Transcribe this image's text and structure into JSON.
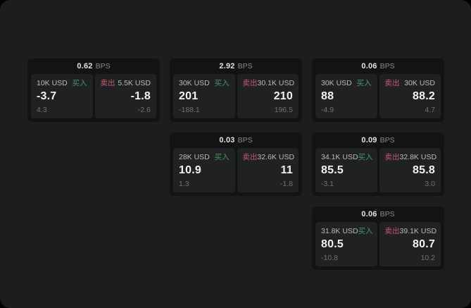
{
  "theme": {
    "page-bg": "#1d1d1e",
    "card-bg": "#121314",
    "panel-bg": "#202122",
    "buy-color": "#43996a",
    "sell-color": "#c75a6e",
    "value-color": "#f2f3f3",
    "muted-color": "#6f7273",
    "label-color": "#b9bcbd",
    "header-value-color": "#e3e3e3",
    "header-unit-color": "#8a8a8a"
  },
  "labels": {
    "bps_unit": "BPS",
    "buy": "买入",
    "sell": "卖出"
  },
  "cards": [
    {
      "bps": "0.62",
      "buy": {
        "amount": "10K USD",
        "price": "-3.7",
        "delta": "4.3"
      },
      "sell": {
        "amount": "5.5K USD",
        "price": "-1.8",
        "delta": "-2.6"
      }
    },
    {
      "bps": "2.92",
      "buy": {
        "amount": "30K USD",
        "price": "201",
        "delta": "-188.1"
      },
      "sell": {
        "amount": "30.1K USD",
        "price": "210",
        "delta": "196.5"
      }
    },
    {
      "bps": "0.06",
      "buy": {
        "amount": "30K USD",
        "price": "88",
        "delta": "-4.9"
      },
      "sell": {
        "amount": "30K USD",
        "price": "88.2",
        "delta": "4.7"
      }
    },
    {
      "bps": "0.03",
      "buy": {
        "amount": "28K USD",
        "price": "10.9",
        "delta": "1.3"
      },
      "sell": {
        "amount": "32.6K USD",
        "price": "11",
        "delta": "-1.8"
      }
    },
    {
      "bps": "0.09",
      "buy": {
        "amount": "34.1K USD",
        "price": "85.5",
        "delta": "-3.1"
      },
      "sell": {
        "amount": "32.8K USD",
        "price": "85.8",
        "delta": "3.0"
      }
    },
    {
      "bps": "0.06",
      "buy": {
        "amount": "31.8K USD",
        "price": "80.5",
        "delta": "-10.8"
      },
      "sell": {
        "amount": "39.1K USD",
        "price": "80.7",
        "delta": "10.2"
      }
    }
  ]
}
